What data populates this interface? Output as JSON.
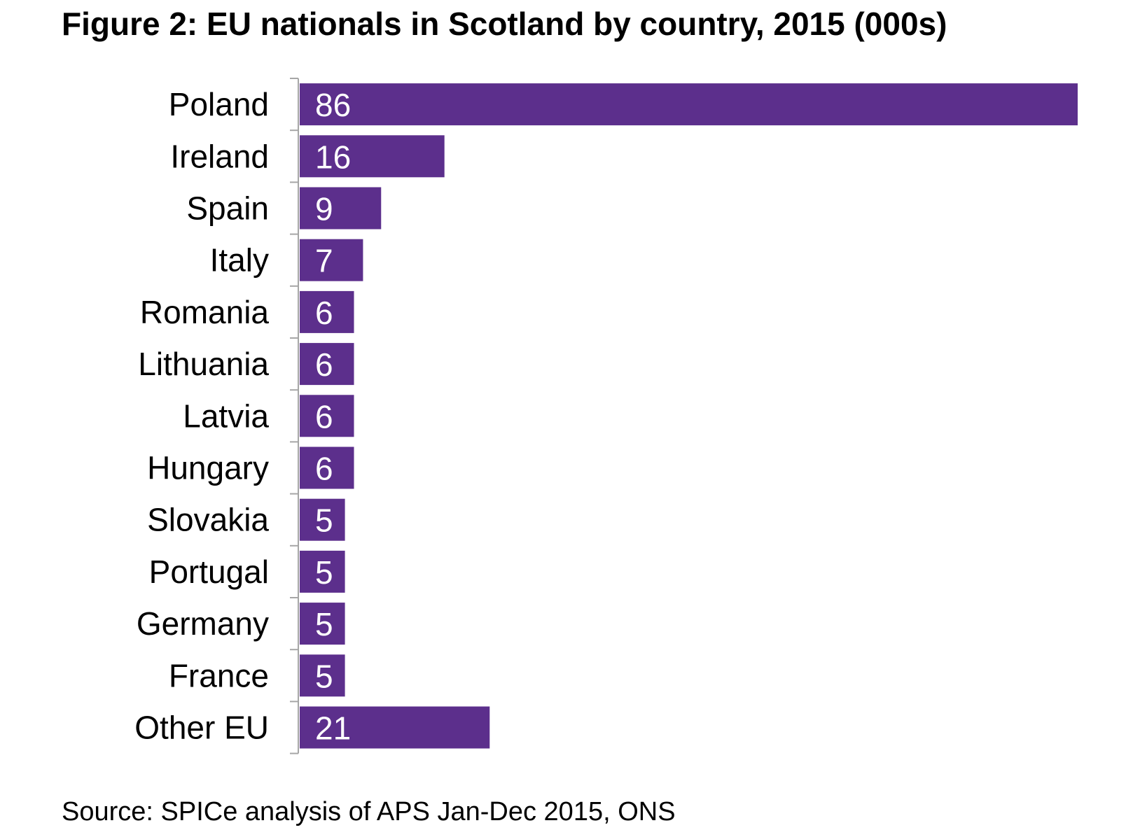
{
  "figure": {
    "title": "Figure 2: EU nationals in Scotland by country, 2015 (000s)",
    "source": "Source: SPICe analysis of APS Jan-Dec 2015, ONS"
  },
  "chart_data": {
    "type": "bar",
    "orientation": "horizontal",
    "title": "Figure 2: EU nationals in Scotland by country, 2015 (000s)",
    "xlabel": "",
    "ylabel": "",
    "categories": [
      "Poland",
      "Ireland",
      "Spain",
      "Italy",
      "Romania",
      "Lithuania",
      "Latvia",
      "Hungary",
      "Slovakia",
      "Portugal",
      "Germany",
      "France",
      "Other EU"
    ],
    "values": [
      86,
      16,
      9,
      7,
      6,
      6,
      6,
      6,
      5,
      5,
      5,
      5,
      21
    ],
    "data_labels": [
      "86",
      "16",
      "9",
      "7",
      "6",
      "6",
      "6",
      "6",
      "5",
      "5",
      "5",
      "5",
      "21"
    ],
    "xlim": [
      0,
      86
    ],
    "grid": false,
    "legend": "none",
    "bar_color": "#5c2f8c",
    "axis_color": "#a6a6a6",
    "data_label_color": "#ffffff"
  }
}
